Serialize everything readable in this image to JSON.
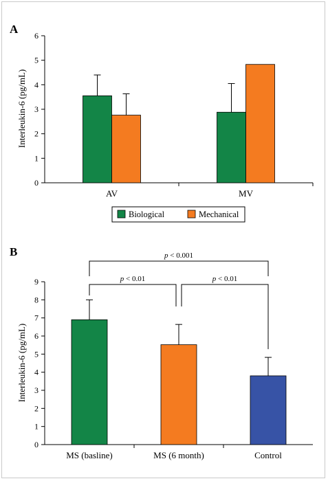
{
  "chart_data": [
    {
      "type": "bar",
      "panel_label": "A",
      "ylabel": "Interleukin-6 (pg/mL)",
      "ylim": [
        0,
        6
      ],
      "yticks": [
        0,
        1,
        2,
        3,
        4,
        5,
        6
      ],
      "categories": [
        "AV",
        "MV"
      ],
      "series": [
        {
          "name": "Biological",
          "color": "#138547",
          "values": [
            3.55,
            2.88
          ],
          "error": [
            0.85,
            1.17
          ]
        },
        {
          "name": "Mechanical",
          "color": "#f47b20",
          "values": [
            2.76,
            4.83
          ],
          "error": [
            0.87,
            null
          ]
        }
      ],
      "legend": {
        "placement": "bottom",
        "entries": [
          "Biological",
          "Mechanical"
        ]
      }
    },
    {
      "type": "bar",
      "panel_label": "B",
      "ylabel": "Interleukin-6 (pg/mL)",
      "ylim": [
        0,
        9
      ],
      "yticks": [
        0,
        1,
        2,
        3,
        4,
        5,
        6,
        7,
        8,
        9
      ],
      "categories": [
        "MS (basline)",
        "MS (6 month)",
        "Control"
      ],
      "values": [
        6.9,
        5.52,
        3.8
      ],
      "error": [
        1.1,
        1.12,
        1.02
      ],
      "colors": [
        "#138547",
        "#f47b20",
        "#3753a6"
      ],
      "annotations": [
        {
          "from": 0,
          "to": 2,
          "text": "p < 0.001"
        },
        {
          "from": 0,
          "to": 1,
          "text": "p < 0.01"
        },
        {
          "from": 1,
          "to": 2,
          "text": "p < 0.01"
        }
      ]
    }
  ]
}
